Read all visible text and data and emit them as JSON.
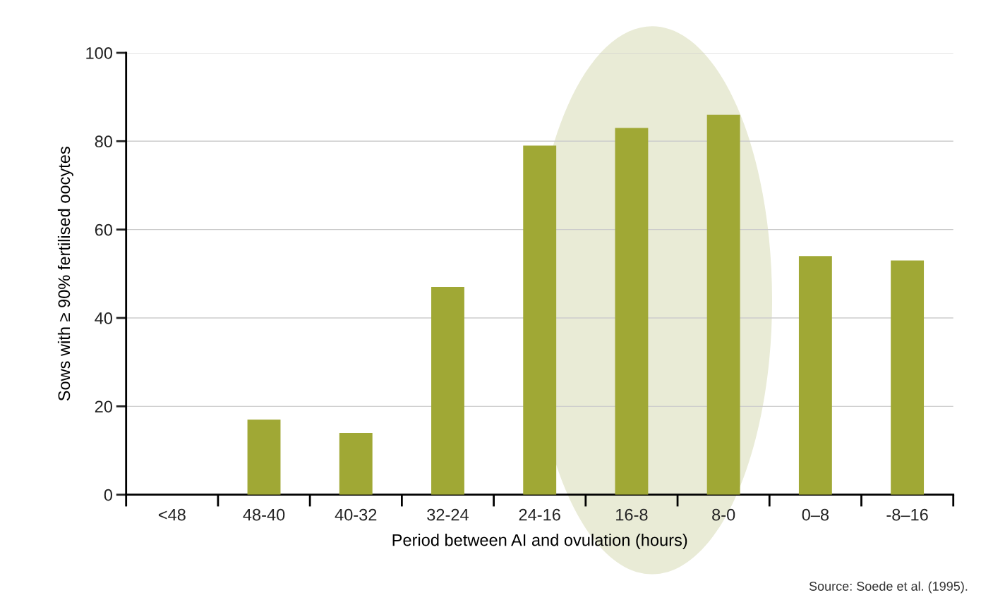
{
  "chart_data": {
    "type": "bar",
    "xlabel": "Period between AI and ovulation (hours)",
    "ylabel": "Sows with ≥ 90% fertilised oocytes",
    "categories": [
      "<48",
      "48-40",
      "40-32",
      "32-24",
      "24-16",
      "16-8",
      "8-0",
      "0–8",
      "-8–16"
    ],
    "values": [
      0,
      17,
      14,
      47,
      79,
      83,
      86,
      54,
      53
    ],
    "color": "#a0a835",
    "ylim": [
      0,
      100
    ],
    "yticks": [
      0,
      20,
      40,
      60,
      80,
      100
    ],
    "grid": "y",
    "annotations": [
      "Source: Soede et al. (1995)."
    ]
  }
}
